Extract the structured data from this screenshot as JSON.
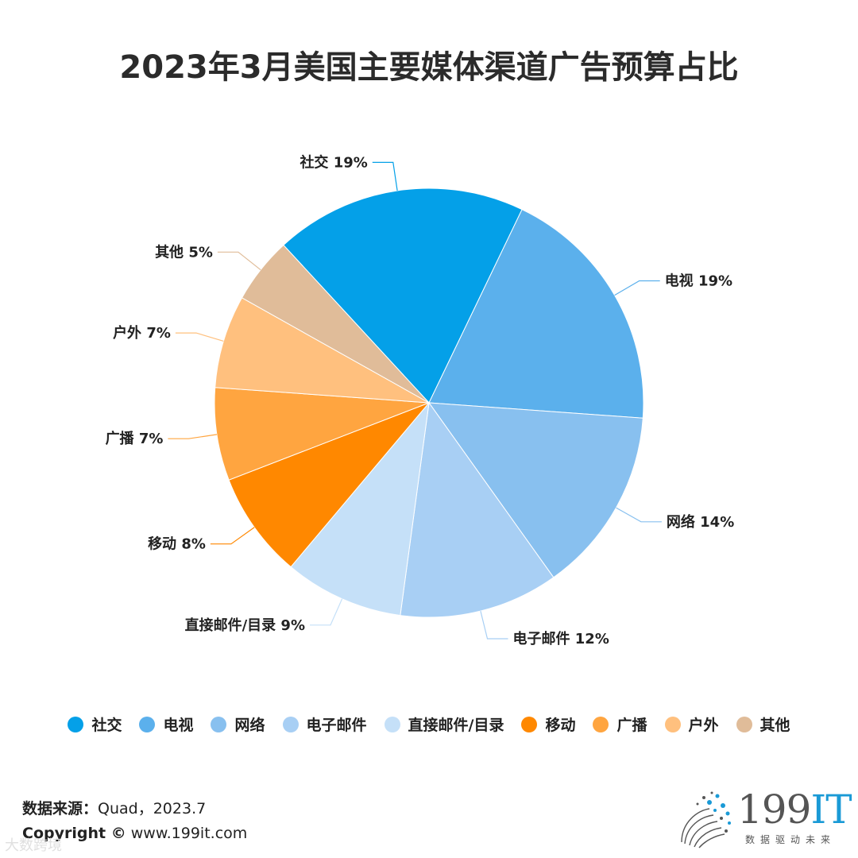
{
  "chart_data": {
    "type": "pie",
    "title": "2023年3月美国主要媒体渠道广告预算占比",
    "categories": [
      "社交",
      "电视",
      "网络",
      "电子邮件",
      "直接邮件/目录",
      "移动",
      "广播",
      "户外",
      "其他"
    ],
    "values": [
      19,
      19,
      14,
      12,
      9,
      8,
      7,
      7,
      5
    ],
    "labels": [
      "社交 19%",
      "电视 19%",
      "网络 14%",
      "电子邮件 12%",
      "直接邮件/目录 9%",
      "移动 8%",
      "广播 7%",
      "户外 7%",
      "其他 5%"
    ],
    "colors": [
      "#04a0e8",
      "#5bb0ec",
      "#88c0ef",
      "#a8cff4",
      "#c5e0f8",
      "#ff8800",
      "#ffa540",
      "#ffc07e",
      "#e0bc99"
    ],
    "legend_position": "bottom"
  },
  "footer": {
    "source_label": "数据来源：",
    "source_value": "Quad，2023.7",
    "copyright_label": "Copyright ©",
    "copyright_value": "www.199it.com",
    "watermark": "大数跨境"
  },
  "logo": {
    "main": "199",
    "accent": "IT",
    "tagline": "数据驱动未来"
  }
}
